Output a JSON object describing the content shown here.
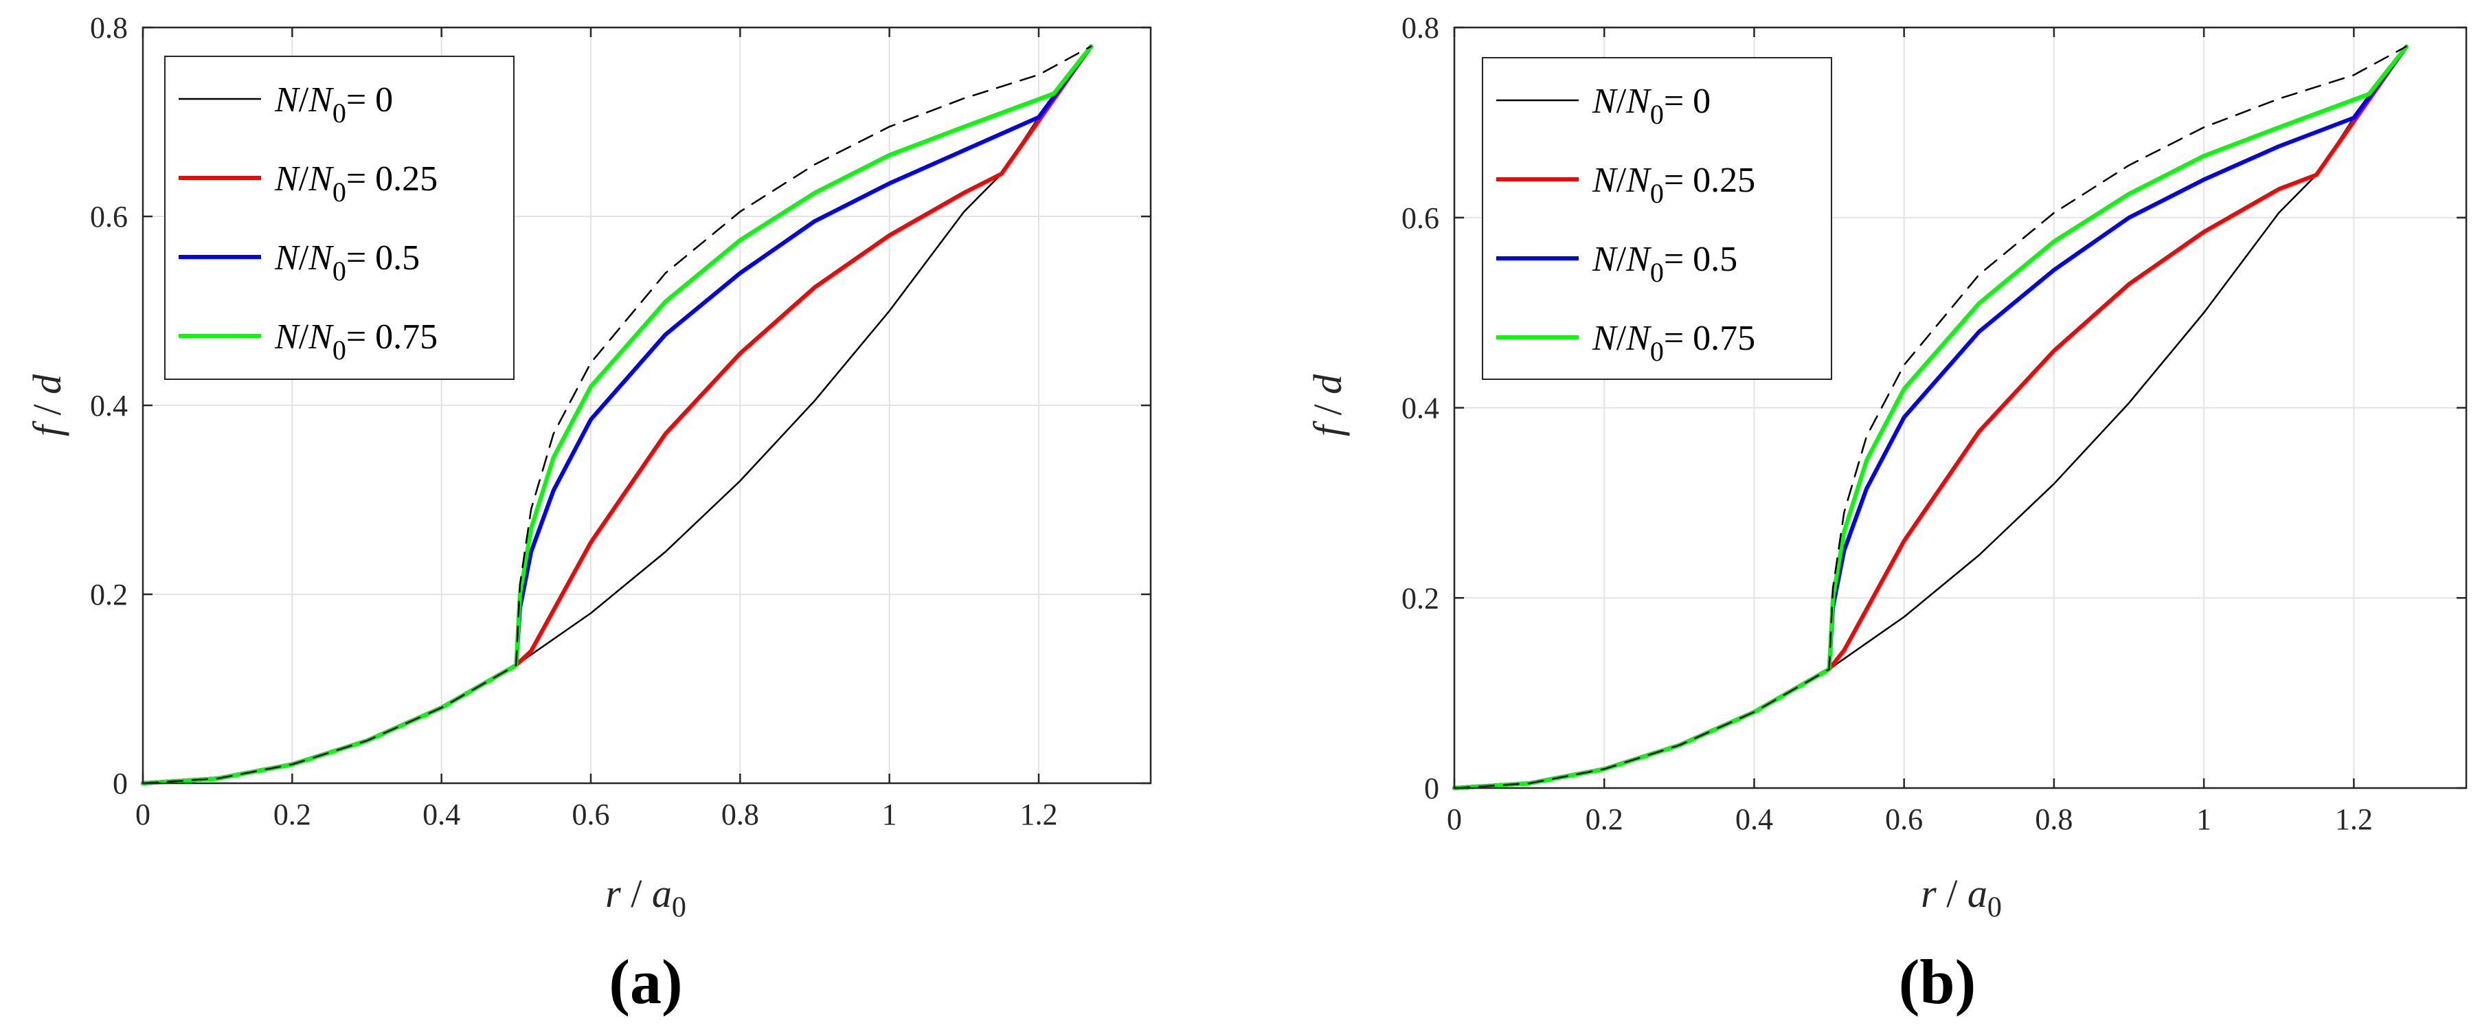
{
  "chart_data": [
    {
      "type": "line",
      "panel_label": "(a)",
      "xlabel": {
        "var": "r",
        "sep": " / ",
        "den": "a",
        "den_sub": "0"
      },
      "ylabel": {
        "var": "f",
        "sep": " / ",
        "den": "d"
      },
      "xlim": [
        0,
        1.35
      ],
      "ylim": [
        0,
        0.8
      ],
      "xticks": [
        0,
        0.2,
        0.4,
        0.6,
        0.8,
        1,
        1.2
      ],
      "xtick_labels": [
        "0",
        "0.2",
        "0.4",
        "0.6",
        "0.8",
        "1",
        "1.2"
      ],
      "yticks": [
        0,
        0.2,
        0.4,
        0.6,
        0.8
      ],
      "ytick_labels": [
        "0",
        "0.2",
        "0.4",
        "0.6",
        "0.8"
      ],
      "grid": true,
      "legend_position": "top-left",
      "series": [
        {
          "name": "N/N0= 0",
          "legend": {
            "v": "N",
            "s": "/",
            "n": "N",
            "sub": "0",
            "val": "= 0"
          },
          "color": "#000000",
          "style": "solid",
          "width": "thin",
          "x": [
            0,
            0.1,
            0.2,
            0.3,
            0.4,
            0.5,
            0.6,
            0.7,
            0.8,
            0.9,
            1.0,
            1.1,
            1.15,
            1.2,
            1.27
          ],
          "y": [
            0,
            0.005,
            0.02,
            0.045,
            0.08,
            0.125,
            0.18,
            0.245,
            0.32,
            0.405,
            0.5,
            0.605,
            0.645,
            0.705,
            0.78
          ]
        },
        {
          "name": "N/N0= 0.25",
          "legend": {
            "v": "N",
            "s": "/",
            "n": "N",
            "sub": "0",
            "val": "= 0.25"
          },
          "color": "#ff0000",
          "style": "solid",
          "width": "thick",
          "x": [
            0,
            0.1,
            0.2,
            0.3,
            0.4,
            0.5,
            0.52,
            0.6,
            0.7,
            0.8,
            0.9,
            1.0,
            1.1,
            1.15,
            1.27
          ],
          "y": [
            0,
            0.005,
            0.02,
            0.045,
            0.08,
            0.125,
            0.14,
            0.255,
            0.37,
            0.455,
            0.525,
            0.58,
            0.625,
            0.645,
            0.78
          ]
        },
        {
          "name": "N/N0= 0.5",
          "legend": {
            "v": "N",
            "s": "/",
            "n": "N",
            "sub": "0",
            "val": "= 0.5"
          },
          "color": "#0000ff",
          "style": "solid",
          "width": "thick",
          "x": [
            0,
            0.1,
            0.2,
            0.3,
            0.4,
            0.5,
            0.505,
            0.52,
            0.55,
            0.6,
            0.7,
            0.8,
            0.9,
            1.0,
            1.1,
            1.2,
            1.27
          ],
          "y": [
            0,
            0.005,
            0.02,
            0.045,
            0.08,
            0.125,
            0.185,
            0.245,
            0.31,
            0.385,
            0.475,
            0.54,
            0.595,
            0.635,
            0.67,
            0.705,
            0.78
          ]
        },
        {
          "name": "N/N0= 0.75",
          "legend": {
            "v": "N",
            "s": "/",
            "n": "N",
            "sub": "0",
            "val": "= 0.75"
          },
          "color": "#00ff00",
          "style": "solid",
          "width": "thick",
          "x": [
            0,
            0.1,
            0.2,
            0.3,
            0.4,
            0.5,
            0.505,
            0.52,
            0.55,
            0.6,
            0.7,
            0.8,
            0.9,
            1.0,
            1.1,
            1.22,
            1.27
          ],
          "y": [
            0,
            0.005,
            0.02,
            0.045,
            0.08,
            0.125,
            0.2,
            0.27,
            0.345,
            0.42,
            0.51,
            0.575,
            0.625,
            0.665,
            0.695,
            0.73,
            0.78
          ]
        },
        {
          "name": "reference",
          "legend": null,
          "color": "#000000",
          "style": "dashed",
          "width": "thin",
          "x": [
            0,
            0.1,
            0.2,
            0.3,
            0.4,
            0.5,
            0.505,
            0.52,
            0.55,
            0.6,
            0.7,
            0.8,
            0.9,
            1.0,
            1.1,
            1.2,
            1.27
          ],
          "y": [
            0,
            0.005,
            0.02,
            0.045,
            0.08,
            0.125,
            0.21,
            0.29,
            0.37,
            0.445,
            0.54,
            0.605,
            0.655,
            0.695,
            0.725,
            0.75,
            0.78
          ]
        }
      ]
    },
    {
      "type": "line",
      "panel_label": "(b)",
      "xlabel": {
        "var": "r",
        "sep": " / ",
        "den": "a",
        "den_sub": "0"
      },
      "ylabel": {
        "var": "f",
        "sep": " / ",
        "den": "d"
      },
      "xlim": [
        0,
        1.35
      ],
      "ylim": [
        0,
        0.8
      ],
      "xticks": [
        0,
        0.2,
        0.4,
        0.6,
        0.8,
        1,
        1.2
      ],
      "xtick_labels": [
        "0",
        "0.2",
        "0.4",
        "0.6",
        "0.8",
        "1",
        "1.2"
      ],
      "yticks": [
        0,
        0.2,
        0.4,
        0.6,
        0.8
      ],
      "ytick_labels": [
        "0",
        "0.2",
        "0.4",
        "0.6",
        "0.8"
      ],
      "grid": true,
      "legend_position": "top-left",
      "series": [
        {
          "name": "N/N0= 0",
          "legend": {
            "v": "N",
            "s": "/",
            "n": "N",
            "sub": "0",
            "val": "= 0"
          },
          "color": "#000000",
          "style": "solid",
          "width": "thin",
          "x": [
            0,
            0.1,
            0.2,
            0.3,
            0.4,
            0.5,
            0.6,
            0.7,
            0.8,
            0.9,
            1.0,
            1.1,
            1.15,
            1.2,
            1.27
          ],
          "y": [
            0,
            0.005,
            0.02,
            0.045,
            0.08,
            0.125,
            0.18,
            0.245,
            0.32,
            0.405,
            0.5,
            0.605,
            0.645,
            0.705,
            0.78
          ]
        },
        {
          "name": "N/N0= 0.25",
          "legend": {
            "v": "N",
            "s": "/",
            "n": "N",
            "sub": "0",
            "val": "= 0.25"
          },
          "color": "#ff0000",
          "style": "solid",
          "width": "thick",
          "x": [
            0,
            0.1,
            0.2,
            0.3,
            0.4,
            0.5,
            0.52,
            0.6,
            0.7,
            0.8,
            0.9,
            1.0,
            1.1,
            1.15,
            1.27
          ],
          "y": [
            0,
            0.005,
            0.02,
            0.045,
            0.08,
            0.125,
            0.145,
            0.26,
            0.375,
            0.46,
            0.53,
            0.585,
            0.63,
            0.645,
            0.78
          ]
        },
        {
          "name": "N/N0= 0.5",
          "legend": {
            "v": "N",
            "s": "/",
            "n": "N",
            "sub": "0",
            "val": "= 0.5"
          },
          "color": "#0000ff",
          "style": "solid",
          "width": "thick",
          "x": [
            0,
            0.1,
            0.2,
            0.3,
            0.4,
            0.5,
            0.505,
            0.52,
            0.55,
            0.6,
            0.7,
            0.8,
            0.9,
            1.0,
            1.1,
            1.2,
            1.27
          ],
          "y": [
            0,
            0.005,
            0.02,
            0.045,
            0.08,
            0.125,
            0.19,
            0.25,
            0.315,
            0.39,
            0.48,
            0.545,
            0.6,
            0.64,
            0.675,
            0.705,
            0.78
          ]
        },
        {
          "name": "N/N0= 0.75",
          "legend": {
            "v": "N",
            "s": "/",
            "n": "N",
            "sub": "0",
            "val": "= 0.75"
          },
          "color": "#00ff00",
          "style": "solid",
          "width": "thick",
          "x": [
            0,
            0.1,
            0.2,
            0.3,
            0.4,
            0.5,
            0.505,
            0.52,
            0.55,
            0.6,
            0.7,
            0.8,
            0.9,
            1.0,
            1.1,
            1.22,
            1.27
          ],
          "y": [
            0,
            0.005,
            0.02,
            0.045,
            0.08,
            0.125,
            0.2,
            0.27,
            0.345,
            0.42,
            0.51,
            0.575,
            0.625,
            0.665,
            0.695,
            0.73,
            0.78
          ]
        },
        {
          "name": "reference",
          "legend": null,
          "color": "#000000",
          "style": "dashed",
          "width": "thin",
          "x": [
            0,
            0.1,
            0.2,
            0.3,
            0.4,
            0.5,
            0.505,
            0.52,
            0.55,
            0.6,
            0.7,
            0.8,
            0.9,
            1.0,
            1.1,
            1.2,
            1.27
          ],
          "y": [
            0,
            0.005,
            0.02,
            0.045,
            0.08,
            0.125,
            0.21,
            0.29,
            0.37,
            0.445,
            0.54,
            0.605,
            0.655,
            0.695,
            0.725,
            0.75,
            0.78
          ]
        }
      ]
    }
  ]
}
